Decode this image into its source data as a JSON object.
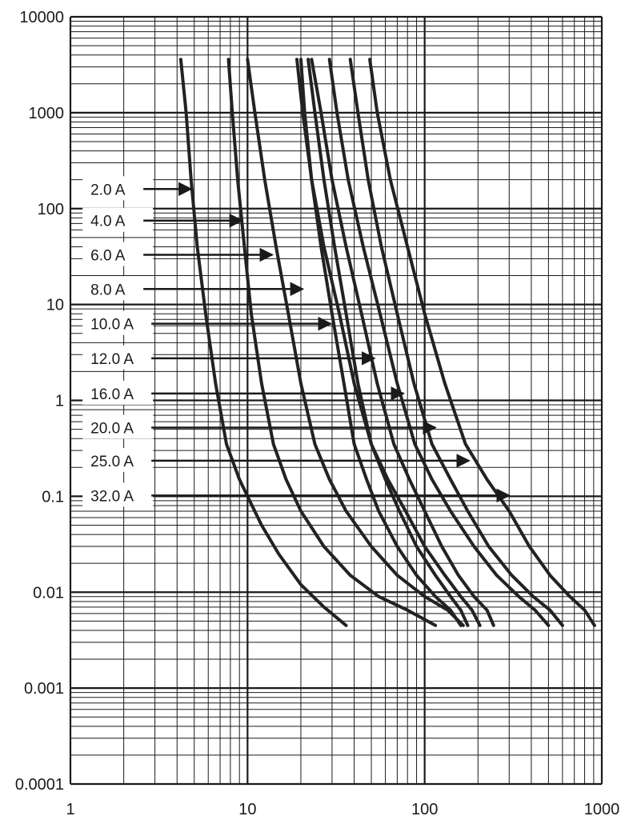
{
  "chart_data": {
    "type": "line",
    "title": "",
    "xlabel": "",
    "ylabel": "",
    "x_scale": "log",
    "y_scale": "log",
    "xlim": [
      1,
      1000
    ],
    "ylim": [
      0.0001,
      10000
    ],
    "grid": true,
    "x_ticks": [
      "1",
      "10",
      "100",
      "1000"
    ],
    "y_ticks": [
      "10000",
      "1000",
      "100",
      "10",
      "1",
      "0.1",
      "0.01",
      "0.001",
      "0.0001"
    ],
    "line_color": "#222222",
    "grid_color": "#1a1a1a",
    "series": [
      {
        "name": "2.0 A",
        "x": [
          4.2,
          4.5,
          4.8,
          5.2,
          5.8,
          6.6,
          7.6,
          9.0,
          10.0,
          12.0,
          15.0,
          20.0,
          27.0,
          36.0
        ],
        "y": [
          3600,
          1000,
          200,
          40,
          8,
          1.5,
          0.35,
          0.15,
          0.1,
          0.05,
          0.025,
          0.012,
          0.007,
          0.0045
        ]
      },
      {
        "name": "4.0 A",
        "x": [
          7.8,
          8.2,
          8.8,
          9.6,
          10.5,
          12.0,
          14.0,
          16.5,
          20.0,
          27.0,
          38.0,
          55.0,
          80.0,
          115.0
        ],
        "y": [
          3600,
          1000,
          200,
          40,
          8,
          1.5,
          0.35,
          0.15,
          0.07,
          0.03,
          0.015,
          0.009,
          0.0065,
          0.0045
        ]
      },
      {
        "name": "6.0 A",
        "x": [
          10.0,
          11.0,
          12.5,
          14.5,
          17.0,
          20.0,
          24.0,
          29.0,
          36.0,
          50.0,
          70.0,
          100.0,
          135.0,
          165.0
        ],
        "y": [
          3600,
          1000,
          200,
          40,
          8,
          1.5,
          0.35,
          0.15,
          0.07,
          0.03,
          0.015,
          0.009,
          0.0065,
          0.0045
        ]
      },
      {
        "name": "8.0 A",
        "x": [
          20.0,
          21.0,
          23.0,
          26.0,
          30.0,
          35.0,
          40.0,
          47.0,
          55.0,
          70.0,
          90.0,
          115.0,
          140.0,
          160.0
        ],
        "y": [
          3600,
          1000,
          200,
          40,
          8,
          1.5,
          0.35,
          0.15,
          0.07,
          0.03,
          0.015,
          0.009,
          0.0065,
          0.0045
        ]
      },
      {
        "name": "10.0 A",
        "x": [
          22.0,
          24.0,
          27.0,
          31.0,
          36.0,
          42.0,
          50.0,
          60.0,
          72.0,
          90.0,
          115.0,
          140.0,
          160.0,
          175.0
        ],
        "y": [
          3600,
          1000,
          200,
          40,
          8,
          1.5,
          0.35,
          0.15,
          0.07,
          0.03,
          0.015,
          0.009,
          0.0065,
          0.0045
        ]
      },
      {
        "name": "12.0 A",
        "x": [
          19.0,
          20.5,
          23.0,
          27.0,
          33.0,
          40.0,
          50.0,
          62.0,
          78.0,
          100.0,
          130.0,
          160.0,
          185.0,
          205.0
        ],
        "y": [
          3600,
          1000,
          200,
          40,
          8,
          1.5,
          0.35,
          0.15,
          0.07,
          0.03,
          0.015,
          0.009,
          0.0065,
          0.0045
        ]
      },
      {
        "name": "16.0 A",
        "x": [
          23.0,
          26.0,
          30.0,
          36.0,
          44.0,
          54.0,
          67.0,
          82.0,
          100.0,
          125.0,
          155.0,
          190.0,
          225.0,
          245.0
        ],
        "y": [
          3600,
          1000,
          200,
          40,
          8,
          1.5,
          0.35,
          0.15,
          0.07,
          0.03,
          0.015,
          0.009,
          0.0065,
          0.0045
        ]
      },
      {
        "name": "20.0 A",
        "x": [
          29.0,
          32.0,
          37.0,
          45.0,
          56.0,
          70.0,
          88.0,
          110.0,
          140.0,
          190.0,
          255.0,
          340.0,
          420.0,
          500.0
        ],
        "y": [
          3600,
          1000,
          200,
          40,
          8,
          1.5,
          0.35,
          0.15,
          0.07,
          0.03,
          0.015,
          0.009,
          0.0065,
          0.0045
        ]
      },
      {
        "name": "25.0 A",
        "x": [
          38.0,
          42.0,
          48.0,
          57.0,
          70.0,
          87.0,
          110.0,
          140.0,
          175.0,
          230.0,
          310.0,
          410.0,
          510.0,
          600.0
        ],
        "y": [
          3600,
          1000,
          200,
          40,
          8,
          1.5,
          0.35,
          0.15,
          0.07,
          0.03,
          0.015,
          0.009,
          0.0065,
          0.0045
        ]
      },
      {
        "name": "32.0 A",
        "x": [
          49.0,
          54.0,
          64.0,
          80.0,
          100.0,
          130.0,
          170.0,
          225.0,
          300.0,
          390.0,
          510.0,
          660.0,
          800.0,
          910.0
        ],
        "y": [
          3600,
          1000,
          200,
          40,
          8,
          1.5,
          0.35,
          0.15,
          0.07,
          0.03,
          0.015,
          0.009,
          0.0065,
          0.0045
        ]
      }
    ],
    "annotations": [
      {
        "label": "2.0 A",
        "label_x": 1.1,
        "arrow_to_x": 4.8,
        "y": 160
      },
      {
        "label": "4.0 A",
        "label_x": 1.1,
        "arrow_to_x": 9.3,
        "y": 75
      },
      {
        "label": "6.0 A",
        "label_x": 1.1,
        "arrow_to_x": 13.8,
        "y": 33
      },
      {
        "label": "8.0 A",
        "label_x": 1.1,
        "arrow_to_x": 20.5,
        "y": 14.5
      },
      {
        "label": "10.0 A",
        "label_x": 1.1,
        "arrow_to_x": 29.5,
        "y": 6.3
      },
      {
        "label": "12.0 A",
        "label_x": 1.1,
        "arrow_to_x": 52.0,
        "y": 2.75
      },
      {
        "label": "16.0 A",
        "label_x": 1.1,
        "arrow_to_x": 76.0,
        "y": 1.18
      },
      {
        "label": "20.0 A",
        "label_x": 1.1,
        "arrow_to_x": 115.0,
        "y": 0.52
      },
      {
        "label": "25.0 A",
        "label_x": 1.1,
        "arrow_to_x": 178.0,
        "y": 0.235
      },
      {
        "label": "32.0 A",
        "label_x": 1.1,
        "arrow_to_x": 300.0,
        "y": 0.102
      }
    ]
  }
}
